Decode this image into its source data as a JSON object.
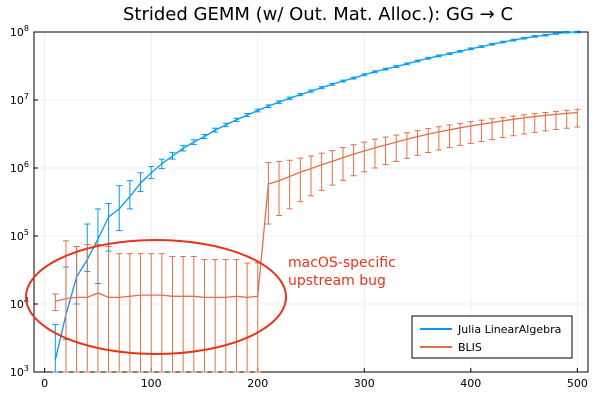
{
  "chart_data": {
    "type": "line",
    "title": "Strided GEMM (w/ Out. Mat. Alloc.): GG → C",
    "xlabel": "",
    "ylabel": "",
    "xlim": [
      -10,
      510
    ],
    "ylim": [
      1000,
      100000000
    ],
    "yscale": "log",
    "grid": true,
    "legend_position": "bottom-right",
    "x_ticks": [
      0,
      100,
      200,
      300,
      400,
      500
    ],
    "y_ticks": [
      {
        "value": 1000,
        "base": "10",
        "exp": "3"
      },
      {
        "value": 10000,
        "base": "10",
        "exp": "4"
      },
      {
        "value": 100000,
        "base": "10",
        "exp": "5"
      },
      {
        "value": 1000000,
        "base": "10",
        "exp": "6"
      },
      {
        "value": 10000000,
        "base": "10",
        "exp": "7"
      },
      {
        "value": 100000000,
        "base": "10",
        "exp": "8"
      }
    ],
    "series": [
      {
        "name": "Julia LinearAlgebra",
        "color": "#009af9",
        "x": [
          10,
          20,
          30,
          40,
          50,
          60,
          70,
          80,
          90,
          100,
          110,
          120,
          130,
          140,
          150,
          160,
          170,
          180,
          190,
          200,
          210,
          220,
          230,
          240,
          250,
          260,
          270,
          280,
          290,
          300,
          310,
          320,
          330,
          340,
          350,
          360,
          370,
          380,
          390,
          400,
          410,
          420,
          430,
          440,
          450,
          460,
          470,
          480,
          490,
          500
        ],
        "y": [
          1500,
          7000,
          25000,
          45000,
          90000,
          190000,
          250000,
          380000,
          600000,
          850000,
          1150000,
          1500000,
          1950000,
          2400000,
          2900000,
          3600000,
          4300000,
          5100000,
          6000000,
          7000000,
          8100000,
          9300000,
          10600000,
          12000000,
          13500000,
          15200000,
          17000000,
          19000000,
          21000000,
          23500000,
          26000000,
          28500000,
          31000000,
          34000000,
          37500000,
          41000000,
          44500000,
          48000000,
          52000000,
          56500000,
          61000000,
          66000000,
          71000000,
          76000000,
          81000000,
          86000000,
          90000000,
          95000000,
          99000000,
          100000000
        ],
        "y_low": [
          1000,
          3000,
          10000,
          30000,
          20000,
          60000,
          120000,
          250000,
          450000,
          700000,
          980000,
          1350000,
          1780000,
          2220000,
          2700000,
          3380000,
          4060000,
          4850000,
          5720000,
          6690000,
          7760000,
          8930000,
          10200000,
          11560000,
          13020000,
          14700000,
          16450000,
          18400000,
          20350000,
          22800000,
          25200000,
          27650000,
          30100000,
          33000000,
          36400000,
          39800000,
          43200000,
          46600000,
          50500000,
          54900000,
          59300000,
          64200000,
          69100000,
          73900000,
          78800000,
          83700000,
          87500000,
          92400000,
          96300000,
          97200000
        ],
        "y_high": [
          5000,
          35000,
          70000,
          150000,
          250000,
          300000,
          550000,
          650000,
          850000,
          1050000,
          1350000,
          1700000,
          2150000,
          2600000,
          3120000,
          3850000,
          4560000,
          5390000,
          6320000,
          7340000,
          8470000,
          9700000,
          11030000,
          12480000,
          14010000,
          15740000,
          17590000,
          19640000,
          21700000,
          24280000,
          26860000,
          29400000,
          31980000,
          35070000,
          38670000,
          42260000,
          45880000,
          49480000,
          53580000,
          58230000,
          62860000,
          67970000,
          73120000,
          78230000,
          83380000,
          88510000,
          92610000,
          97770000,
          101900000,
          102900000
        ]
      },
      {
        "name": "BLIS",
        "color": "#e26f46",
        "x": [
          10,
          20,
          30,
          40,
          50,
          60,
          70,
          80,
          90,
          100,
          110,
          120,
          130,
          140,
          150,
          160,
          170,
          180,
          190,
          200,
          210,
          220,
          230,
          240,
          250,
          260,
          270,
          280,
          290,
          300,
          310,
          320,
          330,
          340,
          350,
          360,
          370,
          380,
          390,
          400,
          410,
          420,
          430,
          440,
          450,
          460,
          470,
          480,
          490,
          500
        ],
        "y": [
          11000,
          12000,
          12500,
          12500,
          14500,
          12500,
          12500,
          13000,
          13500,
          13500,
          13500,
          13000,
          13000,
          13000,
          12500,
          12500,
          12500,
          13000,
          12500,
          13000,
          580000,
          650000,
          750000,
          870000,
          980000,
          1120000,
          1250000,
          1420000,
          1600000,
          1780000,
          1980000,
          2180000,
          2400000,
          2650000,
          2900000,
          3150000,
          3400000,
          3650000,
          3900000,
          4150000,
          4400000,
          4650000,
          4950000,
          5200000,
          5450000,
          5700000,
          5950000,
          6150000,
          6350000,
          6550000
        ],
        "y_low": [
          8000,
          1000,
          1000,
          1000,
          1000,
          1000,
          1000,
          1000,
          1000,
          1000,
          1000,
          1000,
          1000,
          1000,
          1000,
          1000,
          1000,
          1000,
          1000,
          1000,
          150000,
          200000,
          250000,
          320000,
          390000,
          470000,
          560000,
          660000,
          770000,
          880000,
          1000000,
          1120000,
          1250000,
          1390000,
          1540000,
          1690000,
          1840000,
          2000000,
          2150000,
          2300000,
          2450000,
          2620000,
          2800000,
          2980000,
          3160000,
          3340000,
          3520000,
          3680000,
          3840000,
          4000000
        ],
        "y_high": [
          14000,
          85000,
          70000,
          75000,
          75000,
          70000,
          55000,
          55000,
          55000,
          55000,
          55000,
          50000,
          50000,
          50000,
          45000,
          45000,
          45000,
          45000,
          40000,
          40000,
          1200000,
          1250000,
          1300000,
          1400000,
          1500000,
          1650000,
          1800000,
          2000000,
          2200000,
          2400000,
          2650000,
          2850000,
          3050000,
          3300000,
          3550000,
          3800000,
          4050000,
          4300000,
          4550000,
          4800000,
          5050000,
          5300000,
          5550000,
          5800000,
          6050000,
          6300000,
          6550000,
          6800000,
          7050000,
          7300000
        ]
      }
    ],
    "annotation": {
      "lines": [
        "macOS-specific",
        "upstream bug"
      ],
      "color": "#e8341c",
      "anchor": {
        "x": 230,
        "y": 30000
      }
    }
  }
}
